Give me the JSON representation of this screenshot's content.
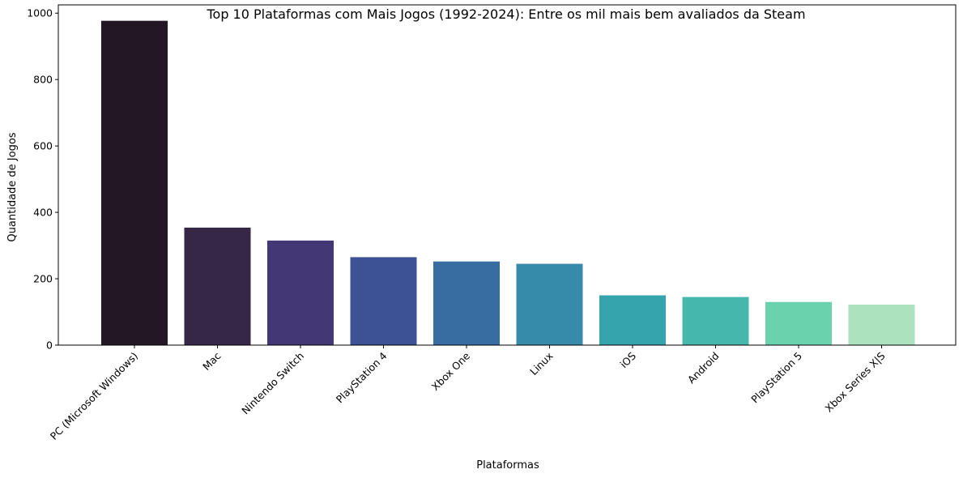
{
  "chart_data": {
    "type": "bar",
    "title": "Top 10 Plataformas com Mais Jogos (1992-2024): Entre os mil mais bem avaliados da Steam",
    "xlabel": "Plataformas",
    "ylabel": "Quantidade de Jogos",
    "categories": [
      "PC (Microsoft Windows)",
      "Mac",
      "Nintendo Switch",
      "PlayStation 4",
      "Xbox One",
      "Linux",
      "iOS",
      "Android",
      "PlayStation 5",
      "Xbox Series X|S"
    ],
    "values": [
      977,
      354,
      315,
      265,
      252,
      245,
      150,
      145,
      130,
      122
    ],
    "colors": [
      "#231725",
      "#362746",
      "#433875",
      "#3c5294",
      "#376da1",
      "#378baa",
      "#36a4ac",
      "#46b8ab",
      "#6ad2ad",
      "#ade2bf"
    ],
    "ylim": [
      0,
      1025
    ],
    "yticks": [
      0,
      200,
      400,
      600,
      800,
      1000
    ],
    "grid": false,
    "legend": "none"
  }
}
